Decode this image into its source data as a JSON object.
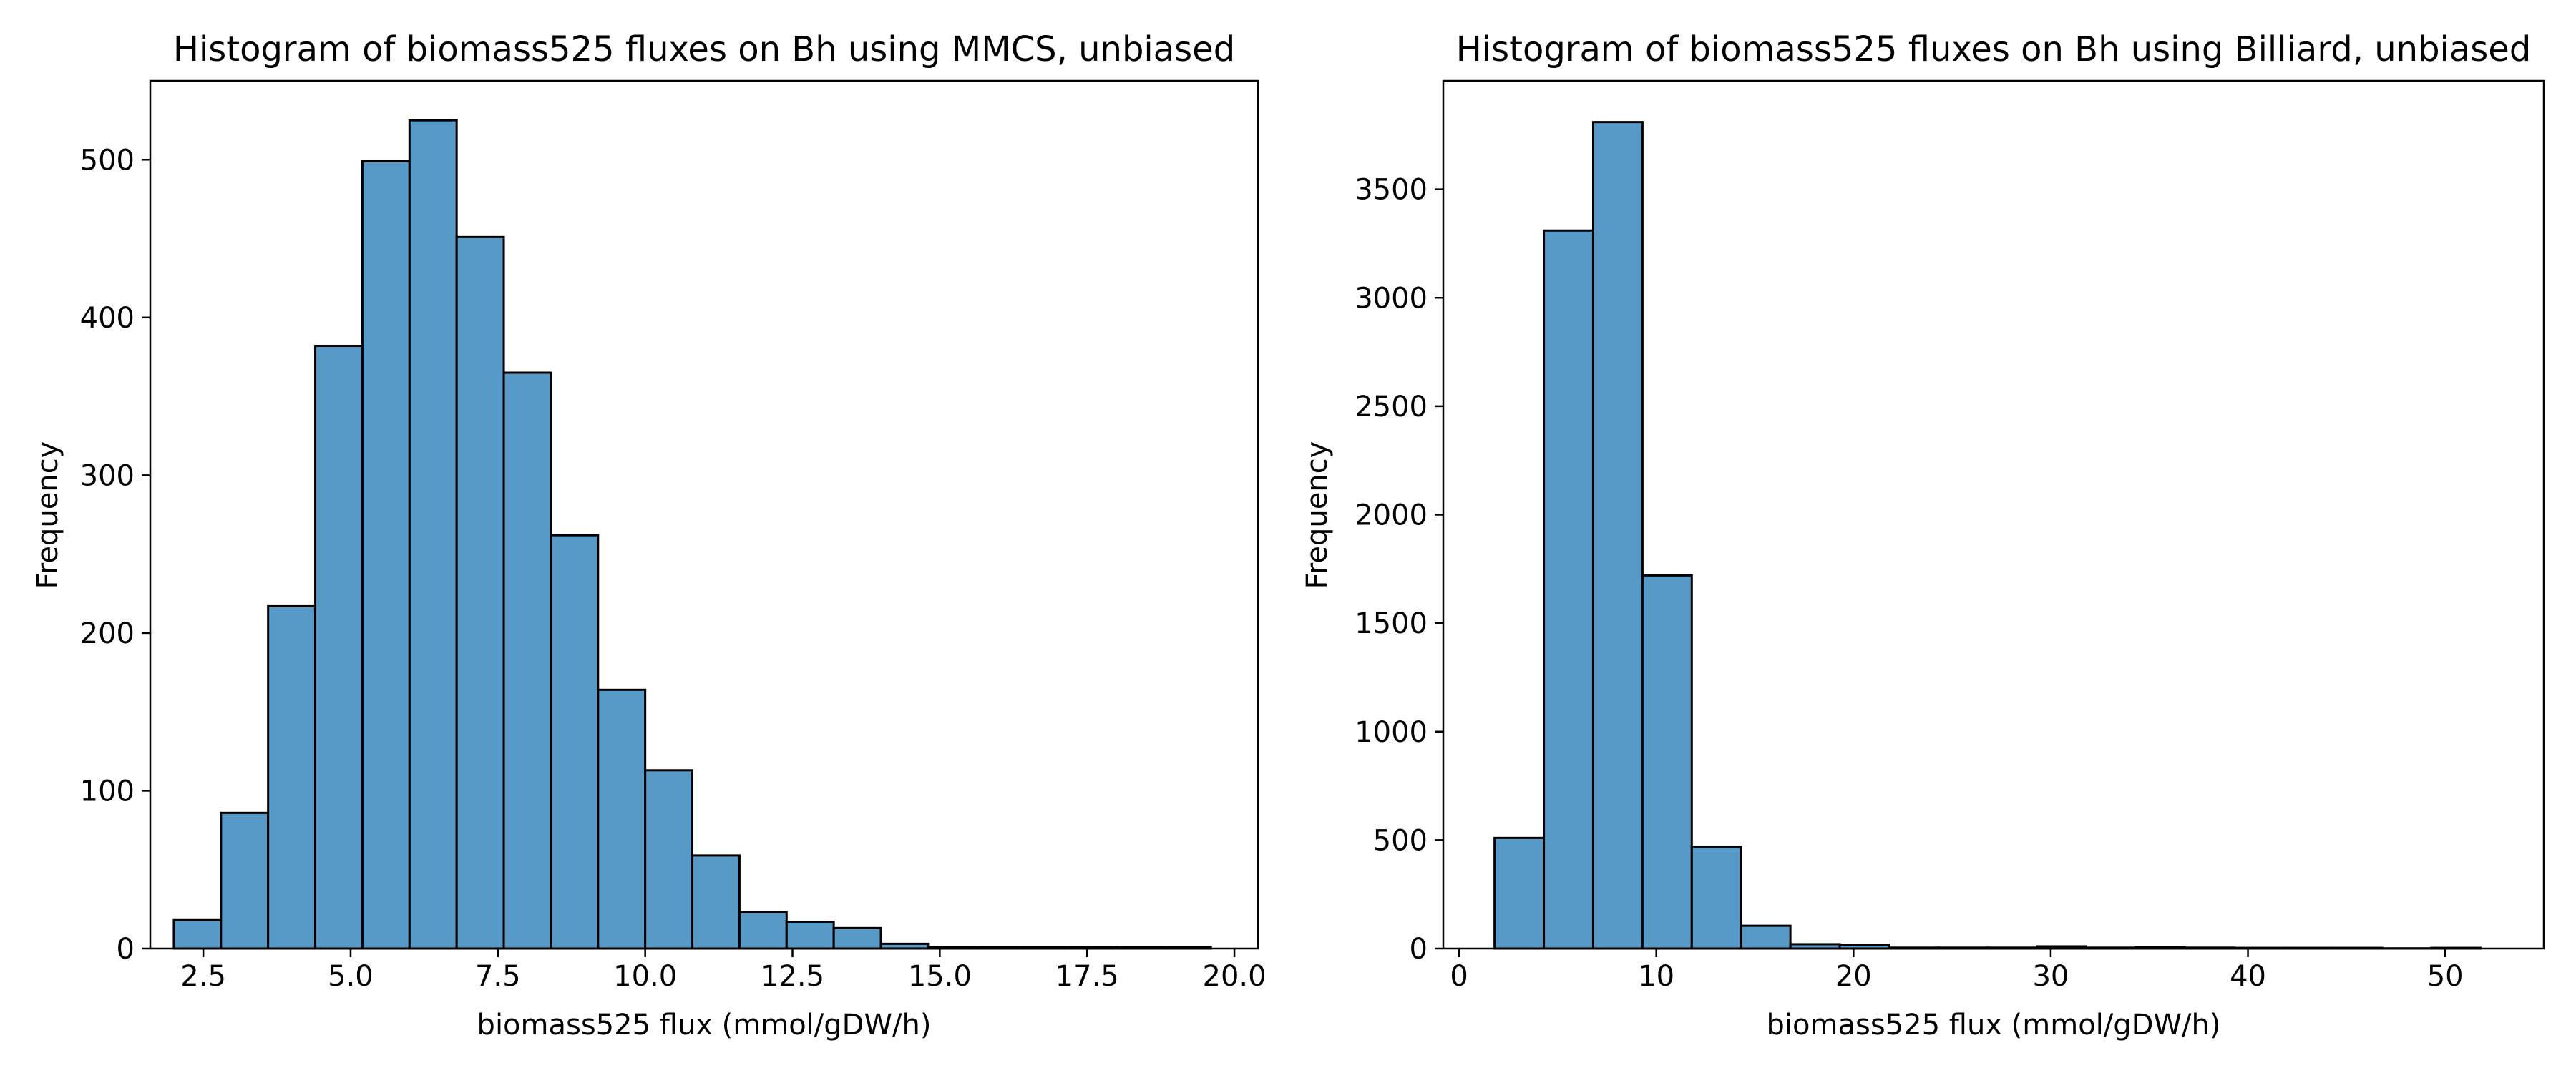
{
  "chart_data": [
    {
      "type": "bar",
      "title": "Histogram of biomass525 fluxes on Bh using MMCS, unbiased",
      "xlabel": "biomass525 flux (mmol/gDW/h)",
      "ylabel": "Frequency",
      "xlim": [
        1.6,
        20.4
      ],
      "ylim": [
        0,
        550
      ],
      "xticks": [
        2.5,
        5.0,
        7.5,
        10.0,
        12.5,
        15.0,
        17.5,
        20.0
      ],
      "xtick_labels": [
        "2.5",
        "5.0",
        "7.5",
        "10.0",
        "12.5",
        "15.0",
        "17.5",
        "20.0"
      ],
      "yticks": [
        0,
        100,
        200,
        300,
        400,
        500
      ],
      "ytick_labels": [
        "0",
        "100",
        "200",
        "300",
        "400",
        "500"
      ],
      "grid": false,
      "bar_color": "#5799c7",
      "edge_color": "#000000",
      "bins": [
        {
          "x0": 2.0,
          "x1": 2.8,
          "count": 18
        },
        {
          "x0": 2.8,
          "x1": 3.6,
          "count": 86
        },
        {
          "x0": 3.6,
          "x1": 4.4,
          "count": 217
        },
        {
          "x0": 4.4,
          "x1": 5.2,
          "count": 382
        },
        {
          "x0": 5.2,
          "x1": 6.0,
          "count": 499
        },
        {
          "x0": 6.0,
          "x1": 6.8,
          "count": 525
        },
        {
          "x0": 6.8,
          "x1": 7.6,
          "count": 451
        },
        {
          "x0": 7.6,
          "x1": 8.4,
          "count": 365
        },
        {
          "x0": 8.4,
          "x1": 9.2,
          "count": 262
        },
        {
          "x0": 9.2,
          "x1": 10.0,
          "count": 164
        },
        {
          "x0": 10.0,
          "x1": 10.8,
          "count": 113
        },
        {
          "x0": 10.8,
          "x1": 11.6,
          "count": 59
        },
        {
          "x0": 11.6,
          "x1": 12.4,
          "count": 23
        },
        {
          "x0": 12.4,
          "x1": 13.2,
          "count": 17
        },
        {
          "x0": 13.2,
          "x1": 14.0,
          "count": 13
        },
        {
          "x0": 14.0,
          "x1": 14.8,
          "count": 3
        },
        {
          "x0": 14.8,
          "x1": 15.6,
          "count": 1
        },
        {
          "x0": 15.6,
          "x1": 16.4,
          "count": 1
        },
        {
          "x0": 16.4,
          "x1": 17.2,
          "count": 1
        },
        {
          "x0": 17.2,
          "x1": 18.0,
          "count": 1
        },
        {
          "x0": 18.0,
          "x1": 18.8,
          "count": 1
        },
        {
          "x0": 18.8,
          "x1": 19.6,
          "count": 1
        }
      ]
    },
    {
      "type": "bar",
      "title": "Histogram of biomass525 fluxes on Bh using Billiard, unbiased",
      "xlabel": "biomass525 flux (mmol/gDW/h)",
      "ylabel": "Frequency",
      "xlim": [
        -0.8,
        55.0
      ],
      "ylim": [
        0,
        4000
      ],
      "xticks": [
        0,
        10,
        20,
        30,
        40,
        50
      ],
      "xtick_labels": [
        "0",
        "10",
        "20",
        "30",
        "40",
        "50"
      ],
      "yticks": [
        0,
        500,
        1000,
        1500,
        2000,
        2500,
        3000,
        3500
      ],
      "ytick_labels": [
        "0",
        "500",
        "1000",
        "1500",
        "2000",
        "2500",
        "3000",
        "3500"
      ],
      "grid": false,
      "bar_color": "#5799c7",
      "edge_color": "#000000",
      "bins": [
        {
          "x0": 1.8,
          "x1": 4.3,
          "count": 510
        },
        {
          "x0": 4.3,
          "x1": 6.8,
          "count": 3310
        },
        {
          "x0": 6.8,
          "x1": 9.3,
          "count": 3810
        },
        {
          "x0": 9.3,
          "x1": 11.8,
          "count": 1720
        },
        {
          "x0": 11.8,
          "x1": 14.3,
          "count": 470
        },
        {
          "x0": 14.3,
          "x1": 16.8,
          "count": 105
        },
        {
          "x0": 16.8,
          "x1": 19.3,
          "count": 20
        },
        {
          "x0": 19.3,
          "x1": 21.8,
          "count": 18
        },
        {
          "x0": 21.8,
          "x1": 24.3,
          "count": 4
        },
        {
          "x0": 24.3,
          "x1": 26.8,
          "count": 4
        },
        {
          "x0": 26.8,
          "x1": 29.3,
          "count": 4
        },
        {
          "x0": 29.3,
          "x1": 31.8,
          "count": 10
        },
        {
          "x0": 31.8,
          "x1": 34.3,
          "count": 4
        },
        {
          "x0": 34.3,
          "x1": 36.8,
          "count": 6
        },
        {
          "x0": 36.8,
          "x1": 39.3,
          "count": 4
        },
        {
          "x0": 39.3,
          "x1": 41.8,
          "count": 3
        },
        {
          "x0": 41.8,
          "x1": 44.3,
          "count": 3
        },
        {
          "x0": 44.3,
          "x1": 46.8,
          "count": 3
        },
        {
          "x0": 46.8,
          "x1": 49.3,
          "count": 1
        },
        {
          "x0": 49.3,
          "x1": 51.8,
          "count": 3
        }
      ]
    }
  ]
}
